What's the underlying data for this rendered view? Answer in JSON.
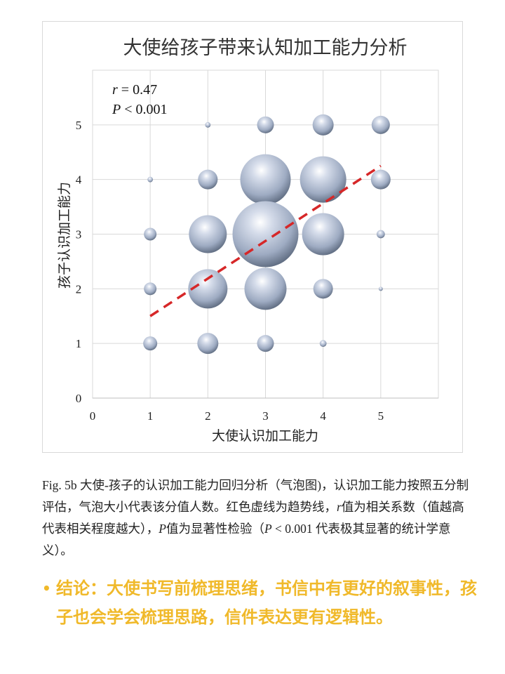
{
  "chart_data": {
    "type": "bubble",
    "title": "大使给孩子带来认知加工能力分析",
    "xlabel": "大使认识加工能力",
    "ylabel": "孩子认识加工能力",
    "xlim": [
      0,
      6
    ],
    "ylim": [
      0,
      6
    ],
    "xticks": [
      "0",
      "1",
      "2",
      "3",
      "4",
      "5"
    ],
    "yticks": [
      "0",
      "1",
      "2",
      "3",
      "4",
      "5"
    ],
    "grid": true,
    "annotations": {
      "r_label": "r",
      "r_value": " = 0.47",
      "p_label": "P",
      "p_value": " < 0.001"
    },
    "bubble_color": "#a9b6cb",
    "trendline": {
      "color": "#d62728",
      "style": "dashed",
      "x": [
        1,
        5
      ],
      "y": [
        1.5,
        4.25
      ]
    },
    "points": [
      {
        "x": 2,
        "y": 5,
        "size": 0.7
      },
      {
        "x": 3,
        "y": 5,
        "size": 6.5
      },
      {
        "x": 4,
        "y": 5,
        "size": 10.2
      },
      {
        "x": 5,
        "y": 5,
        "size": 7.7
      },
      {
        "x": 1,
        "y": 4,
        "size": 0.7
      },
      {
        "x": 2,
        "y": 4,
        "size": 8.9
      },
      {
        "x": 3,
        "y": 4,
        "size": 58.7
      },
      {
        "x": 4,
        "y": 4,
        "size": 49.3
      },
      {
        "x": 5,
        "y": 4,
        "size": 8.9
      },
      {
        "x": 1,
        "y": 3,
        "size": 3.7
      },
      {
        "x": 2,
        "y": 3,
        "size": 33
      },
      {
        "x": 3,
        "y": 3,
        "size": 100
      },
      {
        "x": 4,
        "y": 3,
        "size": 40.7
      },
      {
        "x": 5,
        "y": 3,
        "size": 1.6
      },
      {
        "x": 1,
        "y": 2,
        "size": 3.7
      },
      {
        "x": 2,
        "y": 2,
        "size": 35.5
      },
      {
        "x": 3,
        "y": 2,
        "size": 40.7
      },
      {
        "x": 4,
        "y": 2,
        "size": 8.9
      },
      {
        "x": 5,
        "y": 2,
        "size": 0.4
      },
      {
        "x": 1,
        "y": 1,
        "size": 4.5
      },
      {
        "x": 2,
        "y": 1,
        "size": 10.2
      },
      {
        "x": 3,
        "y": 1,
        "size": 6.5
      },
      {
        "x": 4,
        "y": 1,
        "size": 1.1
      }
    ]
  },
  "caption": {
    "part1": "Fig. 5b 大使-孩子的认识加工能力回归分析（气泡图)，认识加工能力按照五分制评估，气泡大小代表该分值人数。红色虚线为趋势线，",
    "r": "r",
    "part2": "值为相关系数（值越高代表相关程度越大），",
    "p": "P",
    "part3": "值为显著性检验（",
    "p2": "P",
    "part4": " < 0.001 代表极其显著的统计学意义）。"
  },
  "conclusion": {
    "bullet": "•",
    "text": "结论：大使书写前梳理思绪，书信中有更好的叙事性，孩子也会学会梳理思路，信件表达更有逻辑性。",
    "color": "#f0b92a"
  }
}
